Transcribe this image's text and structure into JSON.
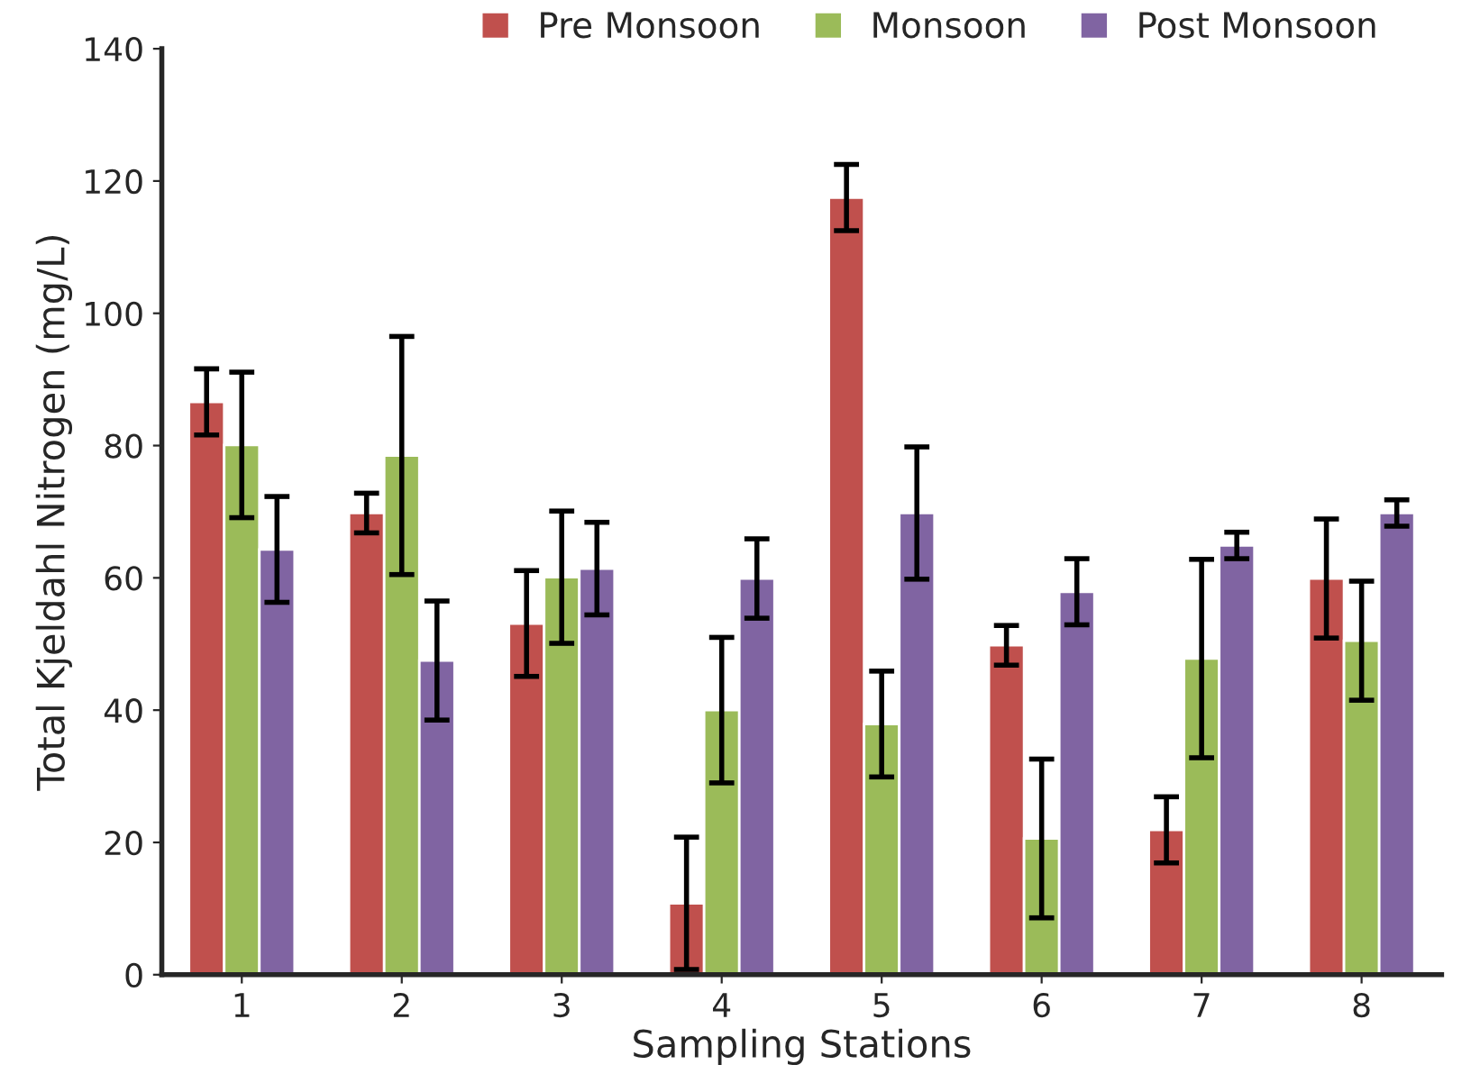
{
  "chart_data": {
    "type": "bar",
    "xlabel": "Sampling Stations",
    "ylabel": "Total Kjeldahl Nitrogen (mg/L)",
    "categories": [
      "1",
      "2",
      "3",
      "4",
      "5",
      "6",
      "7",
      "8"
    ],
    "series": [
      {
        "name": "Pre Monsoon",
        "color": "#c0504d",
        "values": [
          86.6,
          69.8,
          53.1,
          10.8,
          117.5,
          49.8,
          21.9,
          59.9
        ],
        "errors": [
          5,
          3,
          8,
          10,
          5,
          3,
          5,
          9
        ]
      },
      {
        "name": "Monsoon",
        "color": "#9bbb59",
        "values": [
          80.1,
          78.5,
          60.1,
          40,
          37.9,
          20.6,
          47.8,
          50.5
        ],
        "errors": [
          11,
          18,
          10,
          11,
          8,
          12,
          15,
          9
        ]
      },
      {
        "name": "Post Monsoon",
        "color": "#8064a2",
        "values": [
          64.3,
          47.5,
          61.4,
          59.9,
          69.8,
          57.9,
          64.9,
          69.8
        ],
        "errors": [
          8,
          9,
          7,
          6,
          10,
          5,
          2,
          2
        ]
      }
    ],
    "ylim": [
      0,
      140
    ],
    "yticks": [
      0,
      20,
      40,
      60,
      80,
      100,
      120,
      140
    ],
    "grid": false,
    "legend": "top"
  }
}
